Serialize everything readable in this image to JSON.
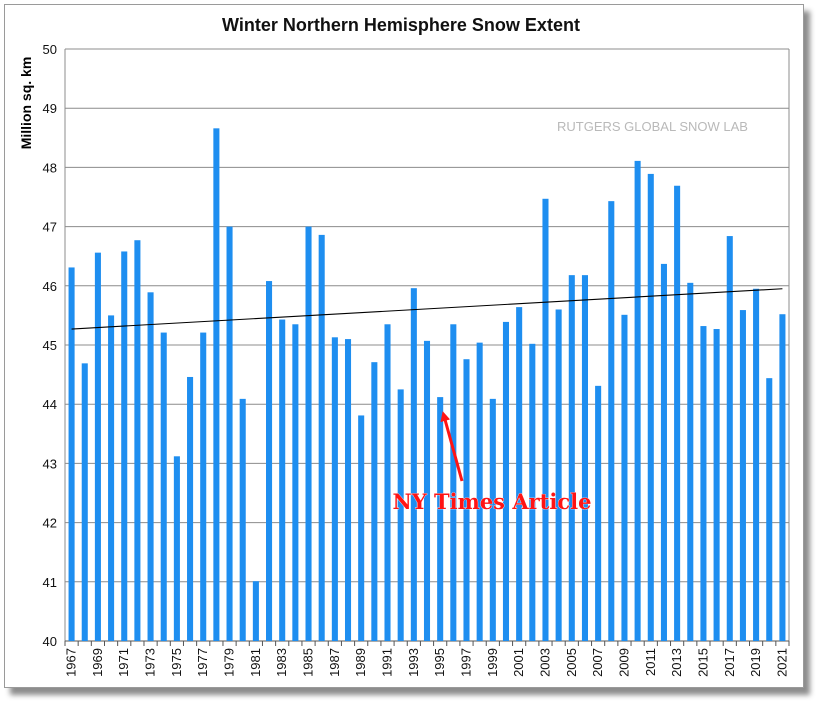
{
  "chart_data": {
    "type": "bar",
    "title": "Winter Northern Hemisphere Snow Extent",
    "ylabel": "Million sq. km",
    "xlabel": "",
    "ylim": [
      40,
      50
    ],
    "yticks": [
      40,
      41,
      42,
      43,
      44,
      45,
      46,
      47,
      48,
      49,
      50
    ],
    "grid": true,
    "bar_color": "#1e8ef0",
    "trend_color": "#000000",
    "trendline": {
      "start": [
        1967,
        45.27
      ],
      "end": [
        2021,
        45.95
      ]
    },
    "watermark": "RUTGERS GLOBAL SNOW LAB",
    "annotation": {
      "text": "NY Times Article",
      "target_year": 1995,
      "color": "#ff1414"
    },
    "categories": [
      "1967",
      "1968",
      "1969",
      "1970",
      "1971",
      "1972",
      "1973",
      "1974",
      "1975",
      "1976",
      "1977",
      "1978",
      "1979",
      "1980",
      "1981",
      "1982",
      "1983",
      "1984",
      "1985",
      "1986",
      "1987",
      "1988",
      "1989",
      "1990",
      "1991",
      "1992",
      "1993",
      "1994",
      "1995",
      "1996",
      "1997",
      "1998",
      "1999",
      "2000",
      "2001",
      "2002",
      "2003",
      "2004",
      "2005",
      "2006",
      "2007",
      "2008",
      "2009",
      "2010",
      "2011",
      "2012",
      "2013",
      "2014",
      "2015",
      "2016",
      "2017",
      "2018",
      "2019",
      "2020",
      "2021"
    ],
    "tick_labels": [
      "1967",
      "1969",
      "1971",
      "1973",
      "1975",
      "1977",
      "1979",
      "1981",
      "1983",
      "1985",
      "1987",
      "1989",
      "1991",
      "1993",
      "1995",
      "1997",
      "1999",
      "2001",
      "2003",
      "2005",
      "2007",
      "2009",
      "2011",
      "2013",
      "2015",
      "2017",
      "2019",
      "2021"
    ],
    "values": [
      46.31,
      44.69,
      46.56,
      45.5,
      46.58,
      46.77,
      45.89,
      45.21,
      43.12,
      44.46,
      45.21,
      48.66,
      47.0,
      44.09,
      41.01,
      46.08,
      45.43,
      45.35,
      47.0,
      46.86,
      45.13,
      45.1,
      43.81,
      44.71,
      45.35,
      44.25,
      45.96,
      45.07,
      44.12,
      45.35,
      44.76,
      45.04,
      44.09,
      45.39,
      45.64,
      45.02,
      47.47,
      45.6,
      46.18,
      46.18,
      44.31,
      47.43,
      45.51,
      48.11,
      47.89,
      46.37,
      47.69,
      46.05,
      45.32,
      45.27,
      46.84,
      45.59,
      45.95,
      44.44,
      45.52
    ]
  }
}
